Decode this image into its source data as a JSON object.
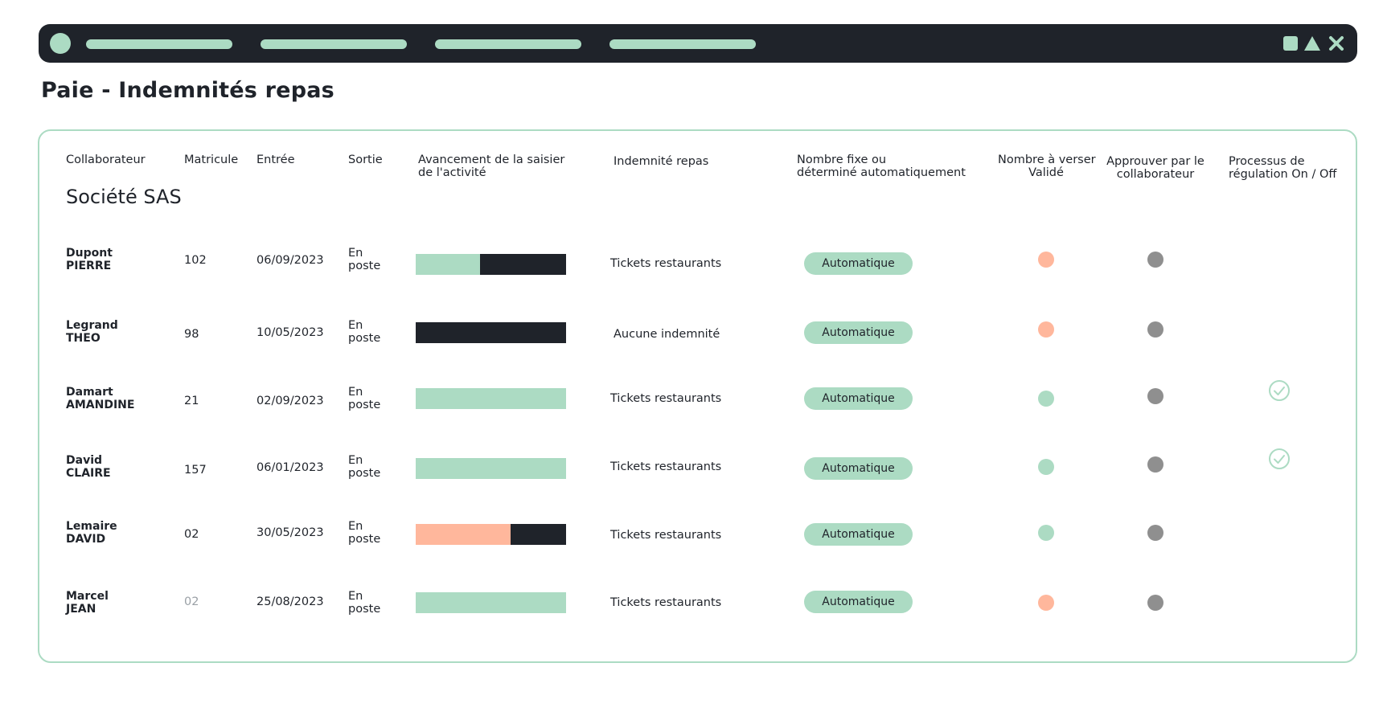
{
  "colors": {
    "dark": "#1f232a",
    "mint": "#acdbc3",
    "salmon": "#ffb79c",
    "grey": "#8f8f8f"
  },
  "window": {
    "controls": [
      "square-icon",
      "triangle-icon",
      "close-icon"
    ]
  },
  "page": {
    "title": "Paie - Indemnités repas"
  },
  "table": {
    "headers": {
      "collaborateur": "Collaborateur",
      "matricule": "Matricule",
      "entree": "Entrée",
      "sortie": "Sortie",
      "avancement_l1": "Avancement de la saisier",
      "avancement_l2": "de l'activité",
      "indemnite": "Indemnité repas",
      "nombre_fixe_l1": "Nombre fixe ou",
      "nombre_fixe_l2": "déterminé automatiquement",
      "nombre_verser_l1": "Nombre à verser",
      "nombre_verser_l2": "Validé",
      "approuver_l1": "Approuver par le",
      "approuver_l2": "collaborateur",
      "processus_l1": "Processus de",
      "processus_l2": "régulation On / Off"
    },
    "company": "Société SAS",
    "rows": [
      {
        "nom": "Dupont",
        "prenom": "PIERRE",
        "matricule": "102",
        "entree": "06/09/2023",
        "sortie_l1": "En",
        "sortie_l2": "poste",
        "progress": 0.43,
        "progress_color": "#acdbc3",
        "indemnite": "Tickets restaurants",
        "mode": "Automatique",
        "valide_color": "#ffb79c",
        "approuve_color": "#8f8f8f",
        "regulation": false
      },
      {
        "nom": "Legrand",
        "prenom": "THEO",
        "matricule": "98",
        "entree": "10/05/2023",
        "sortie_l1": "En",
        "sortie_l2": "poste",
        "progress": 0.0,
        "progress_color": "#acdbc3",
        "indemnite": "Aucune indemnité",
        "mode": "Automatique",
        "valide_color": "#ffb79c",
        "approuve_color": "#8f8f8f",
        "regulation": false
      },
      {
        "nom": "Damart",
        "prenom": "AMANDINE",
        "matricule": "21",
        "entree": "02/09/2023",
        "sortie_l1": "En",
        "sortie_l2": "poste",
        "progress": 1.0,
        "progress_color": "#acdbc3",
        "indemnite": "Tickets restaurants",
        "mode": "Automatique",
        "valide_color": "#acdbc3",
        "approuve_color": "#8f8f8f",
        "regulation": true
      },
      {
        "nom": "David",
        "prenom": "CLAIRE",
        "matricule": "157",
        "entree": "06/01/2023",
        "sortie_l1": "En",
        "sortie_l2": "poste",
        "progress": 1.0,
        "progress_color": "#acdbc3",
        "indemnite": "Tickets restaurants",
        "mode": "Automatique",
        "valide_color": "#acdbc3",
        "approuve_color": "#8f8f8f",
        "regulation": true
      },
      {
        "nom": "Lemaire",
        "prenom": "DAVID",
        "matricule": "02",
        "entree": "30/05/2023",
        "sortie_l1": "En",
        "sortie_l2": "poste",
        "progress": 0.63,
        "progress_color": "#ffb79c",
        "indemnite": "Tickets restaurants",
        "mode": "Automatique",
        "valide_color": "#acdbc3",
        "approuve_color": "#8f8f8f",
        "regulation": false
      },
      {
        "nom": "Marcel",
        "prenom": "JEAN",
        "matricule": "02",
        "entree": "25/08/2023",
        "sortie_l1": "En",
        "sortie_l2": "poste",
        "progress": 1.0,
        "progress_color": "#acdbc3",
        "indemnite": "Tickets restaurants",
        "mode": "Automatique",
        "valide_color": "#ffb79c",
        "approuve_color": "#8f8f8f",
        "regulation": false
      }
    ]
  }
}
